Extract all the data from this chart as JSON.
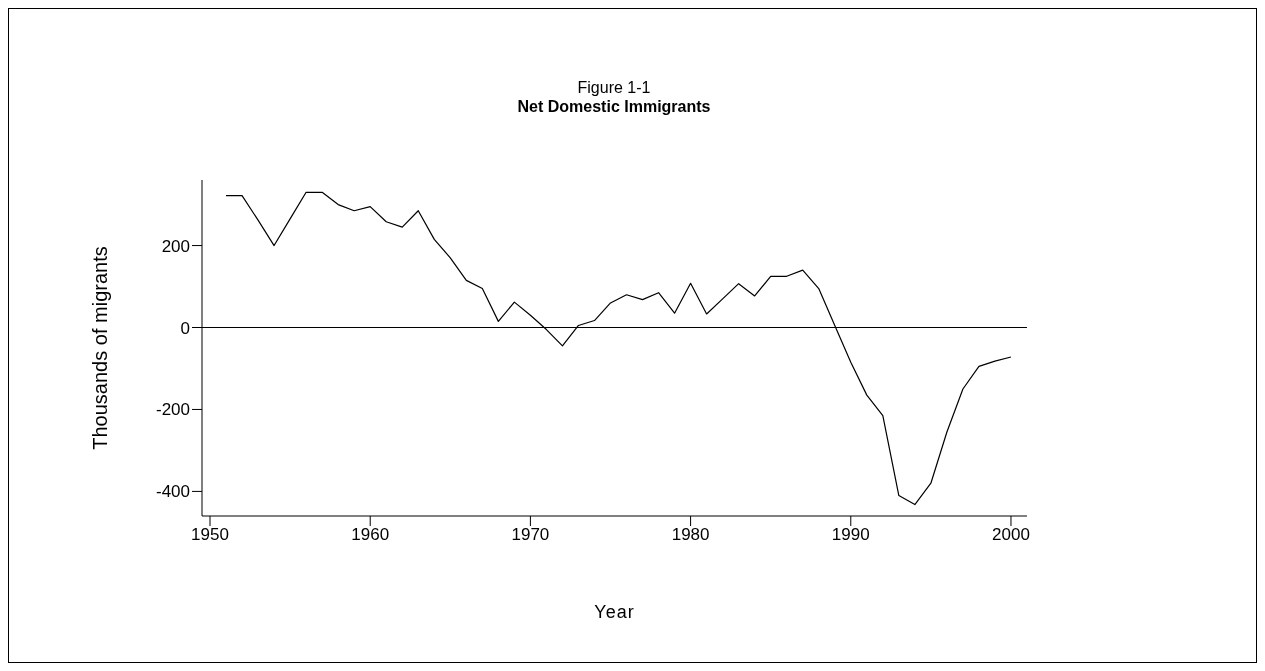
{
  "chart_data": {
    "type": "line",
    "title": "Net Domestic Immigrants",
    "subtitle": "Figure 1-1",
    "xlabel": "Year",
    "ylabel": "Thousands of migrants",
    "x": [
      1951,
      1952,
      1953,
      1954,
      1955,
      1956,
      1957,
      1958,
      1959,
      1960,
      1961,
      1962,
      1963,
      1964,
      1965,
      1966,
      1967,
      1968,
      1969,
      1970,
      1971,
      1972,
      1973,
      1974,
      1975,
      1976,
      1977,
      1978,
      1979,
      1980,
      1981,
      1982,
      1983,
      1984,
      1985,
      1986,
      1987,
      1988,
      1989,
      1990,
      1991,
      1992,
      1993,
      1994,
      1995,
      1996,
      1997,
      1998,
      1999,
      2000
    ],
    "series": [
      {
        "color": "#000000",
        "values": [
          322,
          322,
          262,
          200,
          265,
          330,
          330,
          300,
          285,
          295,
          258,
          245,
          285,
          215,
          170,
          115,
          95,
          15,
          62,
          30,
          -5,
          -45,
          5,
          17,
          60,
          80,
          68,
          85,
          35,
          108,
          33,
          70,
          107,
          77,
          125,
          125,
          140,
          95,
          5,
          -85,
          -165,
          -215,
          -410,
          -432,
          -380,
          -255,
          -150,
          -95,
          -82,
          -72
        ]
      }
    ],
    "xlim": [
      1949.5,
      2001
    ],
    "xticks": [
      1950,
      1960,
      1970,
      1980,
      1990,
      2000
    ],
    "ylim": [
      -460,
      360
    ],
    "yticks": [
      -400,
      -200,
      0,
      200
    ],
    "ref_lines": [
      {
        "axis": "y",
        "value": 0,
        "color": "#000000"
      }
    ]
  }
}
